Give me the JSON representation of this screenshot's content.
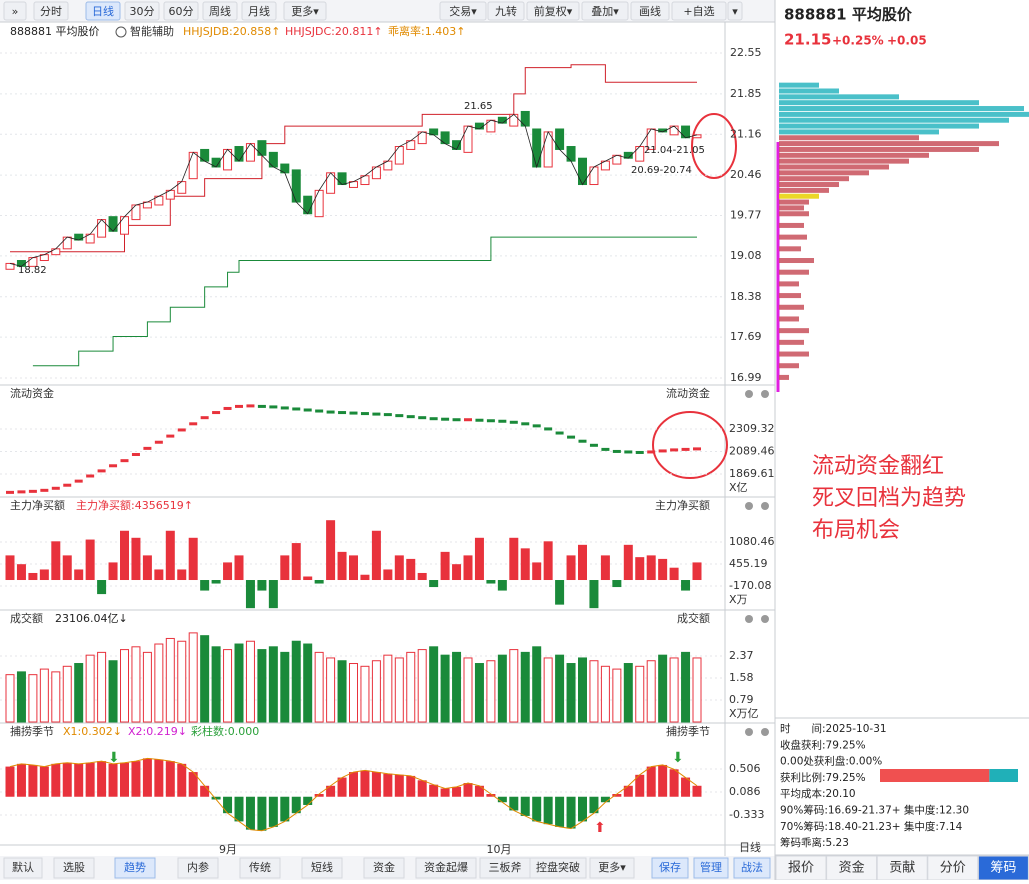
{
  "toolbar": {
    "left": [
      "»",
      "分时",
      "日线",
      "30分",
      "60分",
      "周线",
      "月线",
      "更多▾"
    ],
    "right": [
      "交易▾",
      "九转",
      "前复权▾",
      "叠加▾",
      "画线",
      "+自选",
      "▾"
    ]
  },
  "header": {
    "name": "888881  平均股价",
    "assist": "智能辅助",
    "indicators": [
      "HHJSJDB:20.858↑",
      "HHJSJDC:20.811↑",
      "乖离率:1.403↑"
    ]
  },
  "main": {
    "ylim": [
      16.99,
      22.55
    ],
    "yticks": [
      22.55,
      21.85,
      21.16,
      20.46,
      19.77,
      19.08,
      18.38,
      17.69,
      16.99
    ],
    "open": [
      18.85,
      19.0,
      18.9,
      19.0,
      19.1,
      19.2,
      19.45,
      19.3,
      19.4,
      19.75,
      19.45,
      19.7,
      19.9,
      19.95,
      20.05,
      20.15,
      20.4,
      20.9,
      20.75,
      20.55,
      20.95,
      20.7,
      21.05,
      20.85,
      20.65,
      20.55,
      20.1,
      19.75,
      20.15,
      20.5,
      20.25,
      20.3,
      20.4,
      20.55,
      20.65,
      20.9,
      21.0,
      21.25,
      21.2,
      21.05,
      20.85,
      21.35,
      21.2,
      21.45,
      21.3,
      21.55,
      21.25,
      20.6,
      21.25,
      20.95,
      20.75,
      20.3,
      20.55,
      20.65,
      20.85,
      20.7,
      20.9,
      21.25,
      21.15,
      21.3,
      21.1
    ],
    "close": [
      18.95,
      18.9,
      19.05,
      19.1,
      19.2,
      19.4,
      19.35,
      19.45,
      19.7,
      19.5,
      19.75,
      19.95,
      20.0,
      20.1,
      20.2,
      20.35,
      20.85,
      20.7,
      20.6,
      20.9,
      20.7,
      21.0,
      20.8,
      20.6,
      20.5,
      20.0,
      19.8,
      20.2,
      20.5,
      20.3,
      20.35,
      20.45,
      20.6,
      20.7,
      20.95,
      21.05,
      21.2,
      21.15,
      21.0,
      20.9,
      21.3,
      21.25,
      21.4,
      21.35,
      21.5,
      21.3,
      20.6,
      21.2,
      20.9,
      20.7,
      20.3,
      20.6,
      20.7,
      20.8,
      20.75,
      20.95,
      21.25,
      21.2,
      21.3,
      21.1,
      21.15
    ],
    "upper_band": [
      [
        0,
        19.15
      ],
      [
        10,
        19.6
      ],
      [
        14,
        20.1
      ],
      [
        17,
        20.4
      ],
      [
        22,
        21.0
      ],
      [
        24,
        21.3
      ],
      [
        36,
        21.5
      ],
      [
        44,
        21.85
      ],
      [
        45,
        22.3
      ],
      [
        49,
        22.35
      ],
      [
        52,
        22.05
      ],
      [
        60,
        22.05
      ]
    ],
    "lower_band": [
      [
        2,
        17.2
      ],
      [
        6,
        17.45
      ],
      [
        9,
        17.7
      ],
      [
        12,
        17.95
      ],
      [
        14,
        18.2
      ],
      [
        17,
        18.55
      ],
      [
        19,
        18.8
      ],
      [
        20,
        19.0
      ],
      [
        42,
        19.4
      ],
      [
        60,
        19.4
      ]
    ],
    "annotations": [
      "21.65",
      "18.82",
      "21.04-21.05",
      "20.69-20.74"
    ]
  },
  "flow": {
    "title": "流动资金",
    "right_title": "流动资金",
    "unit": "X亿",
    "yticks": [
      2309.32,
      2089.46,
      1869.61
    ],
    "values": [
      1690,
      1695,
      1700,
      1710,
      1730,
      1760,
      1800,
      1850,
      1900,
      1950,
      2000,
      2060,
      2120,
      2180,
      2240,
      2300,
      2360,
      2420,
      2470,
      2510,
      2530,
      2535,
      2530,
      2525,
      2515,
      2505,
      2495,
      2485,
      2475,
      2470,
      2465,
      2460,
      2455,
      2450,
      2440,
      2430,
      2420,
      2410,
      2405,
      2400,
      2400,
      2395,
      2390,
      2385,
      2375,
      2360,
      2340,
      2310,
      2270,
      2230,
      2190,
      2150,
      2110,
      2090,
      2085,
      2080,
      2085,
      2095,
      2105,
      2110,
      2115
    ]
  },
  "net": {
    "title": "主力净买额",
    "value_text": "主力净买额:4356519↑",
    "right_title": "主力净买额",
    "unit": "X万",
    "yticks": [
      1080.46,
      455.19,
      -170.08
    ],
    "values": [
      700,
      450,
      200,
      300,
      1100,
      700,
      300,
      1150,
      -400,
      500,
      1400,
      1200,
      700,
      300,
      1400,
      300,
      1200,
      -300,
      -100,
      500,
      700,
      -800,
      -300,
      -800,
      700,
      1050,
      100,
      -100,
      1700,
      800,
      700,
      150,
      1400,
      300,
      700,
      600,
      200,
      -200,
      800,
      450,
      700,
      1200,
      -100,
      -300,
      1200,
      900,
      500,
      1100,
      -700,
      700,
      1000,
      -800,
      700,
      -200,
      1000,
      650,
      700,
      600,
      350,
      -300,
      500
    ]
  },
  "volume": {
    "title": "成交额",
    "value_text": "23106.04亿↓",
    "right_title": "成交额",
    "unit": "X万亿",
    "yticks": [
      2.37,
      1.58,
      0.79
    ],
    "values": [
      1.7,
      1.8,
      1.7,
      1.9,
      1.8,
      2.0,
      2.1,
      2.4,
      2.5,
      2.2,
      2.6,
      2.7,
      2.5,
      2.8,
      3.0,
      2.9,
      3.2,
      3.1,
      2.7,
      2.6,
      2.8,
      2.9,
      2.6,
      2.7,
      2.5,
      2.9,
      2.8,
      2.5,
      2.3,
      2.2,
      2.1,
      2.0,
      2.2,
      2.4,
      2.3,
      2.5,
      2.6,
      2.7,
      2.4,
      2.5,
      2.3,
      2.1,
      2.2,
      2.4,
      2.6,
      2.5,
      2.7,
      2.3,
      2.4,
      2.1,
      2.3,
      2.2,
      2.0,
      1.9,
      2.1,
      2.0,
      2.2,
      2.4,
      2.3,
      2.5,
      2.3
    ]
  },
  "season": {
    "title": "捕捞季节",
    "texts": [
      "X1:0.302↓",
      "X2:0.219↓",
      "彩柱数:0.000"
    ],
    "right_title": "捕捞季节",
    "yticks": [
      0.506,
      0.086,
      -0.333
    ],
    "values": [
      0.55,
      0.6,
      0.58,
      0.55,
      0.6,
      0.62,
      0.6,
      0.62,
      0.65,
      0.6,
      0.62,
      0.65,
      0.7,
      0.68,
      0.65,
      0.6,
      0.45,
      0.2,
      -0.05,
      -0.3,
      -0.45,
      -0.6,
      -0.62,
      -0.55,
      -0.45,
      -0.3,
      -0.15,
      0.05,
      0.2,
      0.35,
      0.45,
      0.48,
      0.45,
      0.42,
      0.4,
      0.38,
      0.3,
      0.22,
      0.15,
      0.18,
      0.25,
      0.2,
      0.05,
      -0.1,
      -0.25,
      -0.35,
      -0.45,
      -0.5,
      -0.55,
      -0.58,
      -0.45,
      -0.3,
      -0.1,
      0.05,
      0.2,
      0.4,
      0.55,
      0.58,
      0.5,
      0.35,
      0.2
    ]
  },
  "x_labels": [
    "9月",
    "10月",
    "日线"
  ],
  "bottom_tabs": [
    "默认",
    "选股",
    "趋势",
    "内参",
    "传统",
    "短线",
    "资金",
    "资金起爆",
    "三板斧",
    "控盘突破",
    "更多▾",
    "保存",
    "管理",
    "战法"
  ],
  "side": {
    "name": "888881 平均股价",
    "price": "21.15",
    "pct": "+0.25%",
    "change": "+0.05",
    "chips": [
      [
        22.0,
        40
      ],
      [
        21.9,
        60
      ],
      [
        21.8,
        120
      ],
      [
        21.7,
        200
      ],
      [
        21.6,
        245
      ],
      [
        21.5,
        250
      ],
      [
        21.4,
        230
      ],
      [
        21.3,
        200
      ],
      [
        21.2,
        160
      ],
      [
        21.1,
        140
      ],
      [
        21.0,
        220
      ],
      [
        20.9,
        200
      ],
      [
        20.8,
        150
      ],
      [
        20.7,
        130
      ],
      [
        20.6,
        110
      ],
      [
        20.5,
        90
      ],
      [
        20.4,
        70
      ],
      [
        20.3,
        60
      ],
      [
        20.2,
        50
      ],
      [
        20.1,
        40
      ],
      [
        20.0,
        30
      ],
      [
        19.9,
        25
      ],
      [
        19.8,
        30
      ],
      [
        19.6,
        25
      ],
      [
        19.4,
        28
      ],
      [
        19.2,
        22
      ],
      [
        19.0,
        35
      ],
      [
        18.8,
        30
      ],
      [
        18.6,
        20
      ],
      [
        18.4,
        22
      ],
      [
        18.2,
        25
      ],
      [
        18.0,
        20
      ],
      [
        17.8,
        30
      ],
      [
        17.6,
        25
      ],
      [
        17.4,
        30
      ],
      [
        17.2,
        20
      ],
      [
        17.0,
        10
      ]
    ],
    "note": [
      "流动资金翻红",
      "死叉回档为趋势",
      "布局机会"
    ],
    "info": [
      "时　　间:2025-10-31",
      "收盘获利:79.25%",
      "0.00处获利盘:0.00%",
      "获利比例:79.25%",
      "平均成本:20.10",
      "90%筹码:16.69-21.37+ 集中度:12.30",
      "70%筹码:18.40-21.23+ 集中度:7.14",
      "筹码乖离:5.23"
    ],
    "profit_ratio": 79.25,
    "tabs": [
      "报价",
      "资金",
      "贡献",
      "分价",
      "筹码"
    ]
  }
}
